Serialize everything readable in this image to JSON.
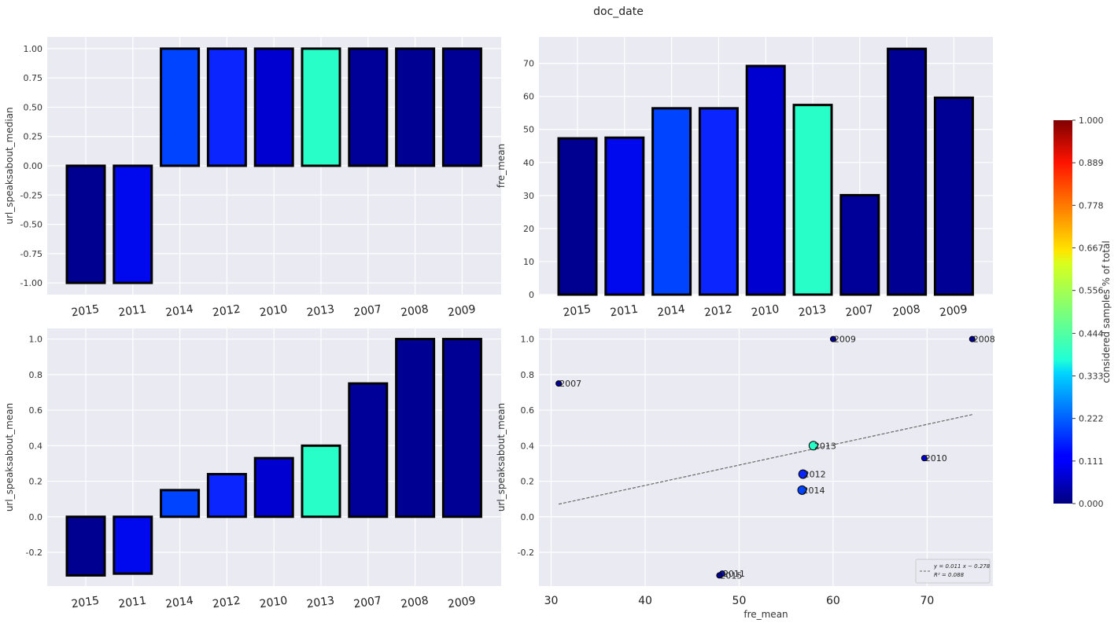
{
  "suptitle": "doc_date",
  "colorbar": {
    "label": "considered samples % of total",
    "ticks": [
      "0.000",
      "0.111",
      "0.222",
      "0.333",
      "0.444",
      "0.556",
      "0.667",
      "0.778",
      "0.889",
      "1.000"
    ],
    "range": [
      0,
      1
    ],
    "colormap": "jet"
  },
  "chart_data": [
    {
      "type": "bar",
      "panel": "top-left",
      "title": "",
      "xlabel": "",
      "ylabel": "url_speaksabout_median",
      "categories": [
        "2015",
        "2011",
        "2014",
        "2012",
        "2010",
        "2013",
        "2007",
        "2008",
        "2009"
      ],
      "values": [
        -1.0,
        -1.0,
        1.0,
        1.0,
        1.0,
        1.0,
        1.0,
        1.0,
        1.0
      ],
      "colors": [
        "#000090",
        "#0008ED",
        "#0044FF",
        "#0A25FF",
        "#0000D0",
        "#28FFC8",
        "#000098",
        "#000092",
        "#000094"
      ],
      "ylim": [
        -1.1,
        1.1
      ],
      "yticks": [
        "1.00",
        "0.75",
        "0.50",
        "0.25",
        "0.00",
        "-0.25",
        "-0.50",
        "-0.75",
        "-1.00"
      ],
      "grid": true
    },
    {
      "type": "bar",
      "panel": "top-right",
      "title": "",
      "xlabel": "",
      "ylabel": "fre_mean",
      "categories": [
        "2015",
        "2011",
        "2014",
        "2012",
        "2010",
        "2013",
        "2007",
        "2008",
        "2009"
      ],
      "values": [
        47.3,
        47.5,
        56.4,
        56.4,
        69.2,
        57.4,
        30.1,
        74.4,
        59.6
      ],
      "colors": [
        "#000090",
        "#0008ED",
        "#0044FF",
        "#0A25FF",
        "#0000D0",
        "#28FFC8",
        "#000098",
        "#000092",
        "#000094"
      ],
      "ylim": [
        0,
        78
      ],
      "yticks": [
        "70",
        "60",
        "50",
        "40",
        "30",
        "20",
        "10",
        "0"
      ],
      "grid": true
    },
    {
      "type": "bar",
      "panel": "bottom-left",
      "title": "",
      "xlabel": "",
      "ylabel": "url_speaksabout_mean",
      "categories": [
        "2015",
        "2011",
        "2014",
        "2012",
        "2010",
        "2013",
        "2007",
        "2008",
        "2009"
      ],
      "values": [
        -0.33,
        -0.32,
        0.15,
        0.24,
        0.33,
        0.4,
        0.75,
        1.0,
        1.0
      ],
      "colors": [
        "#000090",
        "#0008ED",
        "#0044FF",
        "#0A25FF",
        "#0000D0",
        "#28FFC8",
        "#000098",
        "#000092",
        "#000094"
      ],
      "ylim": [
        -0.39,
        1.06
      ],
      "yticks": [
        "1.0",
        "0.8",
        "0.6",
        "0.4",
        "0.2",
        "0.0",
        "-0.2"
      ],
      "grid": true
    },
    {
      "type": "scatter",
      "panel": "bottom-right",
      "title": "",
      "xlabel": "fre_mean",
      "ylabel": "url_speaksabout_mean",
      "points": [
        {
          "label": "2009",
          "x": 60.0,
          "y": 1.0,
          "color": "#000094",
          "large": false
        },
        {
          "label": "2008",
          "x": 74.8,
          "y": 1.0,
          "color": "#000092",
          "large": false
        },
        {
          "label": "2007",
          "x": 30.8,
          "y": 0.75,
          "color": "#000098",
          "large": false
        },
        {
          "label": "2013",
          "x": 57.9,
          "y": 0.4,
          "color": "#28FFC8",
          "large": true
        },
        {
          "label": "2010",
          "x": 69.7,
          "y": 0.33,
          "color": "#0000D0",
          "large": false
        },
        {
          "label": "2012",
          "x": 56.8,
          "y": 0.24,
          "color": "#0A25FF",
          "large": true
        },
        {
          "label": "2014",
          "x": 56.7,
          "y": 0.15,
          "color": "#0044FF",
          "large": true
        },
        {
          "label": "2011",
          "x": 48.2,
          "y": -0.32,
          "color": "#0008ED",
          "large": false
        },
        {
          "label": "2015",
          "x": 47.9,
          "y": -0.33,
          "color": "#000090",
          "large": false
        }
      ],
      "fit_line": {
        "x": [
          30.8,
          74.8
        ],
        "y": [
          0.071,
          0.575
        ]
      },
      "legend": {
        "position": "bottom-right",
        "lines": [
          "y = 0.011 x − 0.278",
          "R² = 0.088"
        ]
      },
      "xlim": [
        28.7,
        77.0
      ],
      "ylim": [
        -0.39,
        1.06
      ],
      "xticks": [
        "30",
        "40",
        "50",
        "60",
        "70"
      ],
      "yticks": [
        "1.0",
        "0.8",
        "0.6",
        "0.4",
        "0.2",
        "0.0",
        "-0.2"
      ],
      "grid": true
    }
  ]
}
